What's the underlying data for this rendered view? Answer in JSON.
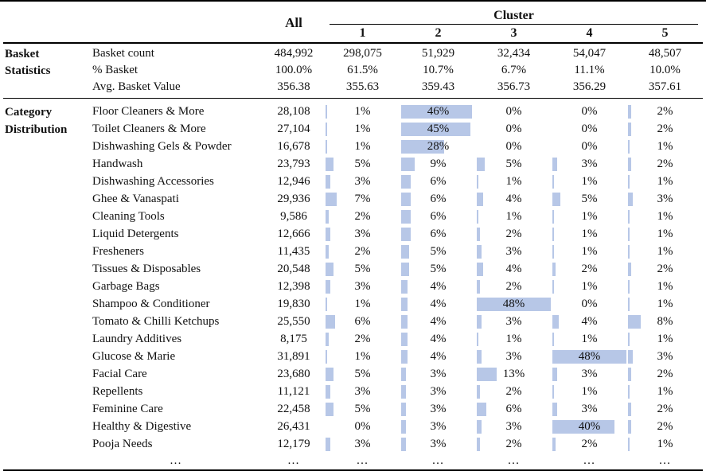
{
  "chart_data": {
    "type": "table",
    "header": {
      "all": "All",
      "cluster": "Cluster",
      "cluster_ids": [
        "1",
        "2",
        "3",
        "4",
        "5"
      ]
    },
    "basket_statistics": {
      "label": "Basket Statistics",
      "rows": [
        {
          "label": "Basket count",
          "all": "484,992",
          "clusters": [
            "298,075",
            "51,929",
            "32,434",
            "54,047",
            "48,507"
          ]
        },
        {
          "label": "% Basket",
          "all": "100.0%",
          "clusters": [
            "61.5%",
            "10.7%",
            "6.7%",
            "11.1%",
            "10.0%"
          ]
        },
        {
          "label": "Avg. Basket Value",
          "all": "356.38",
          "clusters": [
            "355.63",
            "359.43",
            "356.73",
            "356.29",
            "357.61"
          ]
        }
      ]
    },
    "category_distribution": {
      "label": "Category Distribution",
      "bar_color": "#b7c7e7",
      "bar_scale_max_pct": 48,
      "rows": [
        {
          "category": "Floor Cleaners & More",
          "all_count": "28,108",
          "cluster_pcts": [
            1,
            46,
            0,
            0,
            2
          ]
        },
        {
          "category": "Toilet Cleaners & More",
          "all_count": "27,104",
          "cluster_pcts": [
            1,
            45,
            0,
            0,
            2
          ]
        },
        {
          "category": "Dishwashing Gels & Powder",
          "all_count": "16,678",
          "cluster_pcts": [
            1,
            28,
            0,
            0,
            1
          ]
        },
        {
          "category": "Handwash",
          "all_count": "23,793",
          "cluster_pcts": [
            5,
            9,
            5,
            3,
            2
          ]
        },
        {
          "category": "Dishwashing Accessories",
          "all_count": "12,946",
          "cluster_pcts": [
            3,
            6,
            1,
            1,
            1
          ]
        },
        {
          "category": "Ghee & Vanaspati",
          "all_count": "29,936",
          "cluster_pcts": [
            7,
            6,
            4,
            5,
            3
          ]
        },
        {
          "category": "Cleaning Tools",
          "all_count": "9,586",
          "cluster_pcts": [
            2,
            6,
            1,
            1,
            1
          ]
        },
        {
          "category": "Liquid Detergents",
          "all_count": "12,666",
          "cluster_pcts": [
            3,
            6,
            2,
            1,
            1
          ]
        },
        {
          "category": "Fresheners",
          "all_count": "11,435",
          "cluster_pcts": [
            2,
            5,
            3,
            1,
            1
          ]
        },
        {
          "category": "Tissues & Disposables",
          "all_count": "20,548",
          "cluster_pcts": [
            5,
            5,
            4,
            2,
            2
          ]
        },
        {
          "category": "Garbage Bags",
          "all_count": "12,398",
          "cluster_pcts": [
            3,
            4,
            2,
            1,
            1
          ]
        },
        {
          "category": "Shampoo & Conditioner",
          "all_count": "19,830",
          "cluster_pcts": [
            1,
            4,
            48,
            0,
            1
          ]
        },
        {
          "category": "Tomato & Chilli Ketchups",
          "all_count": "25,550",
          "cluster_pcts": [
            6,
            4,
            3,
            4,
            8
          ]
        },
        {
          "category": "Laundry Additives",
          "all_count": "8,175",
          "cluster_pcts": [
            2,
            4,
            1,
            1,
            1
          ]
        },
        {
          "category": "Glucose & Marie",
          "all_count": "31,891",
          "cluster_pcts": [
            1,
            4,
            3,
            48,
            3
          ]
        },
        {
          "category": "Facial Care",
          "all_count": "23,680",
          "cluster_pcts": [
            5,
            3,
            13,
            3,
            2
          ]
        },
        {
          "category": "Repellents",
          "all_count": "11,121",
          "cluster_pcts": [
            3,
            3,
            2,
            1,
            1
          ]
        },
        {
          "category": "Feminine Care",
          "all_count": "22,458",
          "cluster_pcts": [
            5,
            3,
            6,
            3,
            2
          ]
        },
        {
          "category": "Healthy & Digestive",
          "all_count": "26,431",
          "cluster_pcts": [
            0,
            3,
            3,
            40,
            2
          ]
        },
        {
          "category": "Pooja Needs",
          "all_count": "12,179",
          "cluster_pcts": [
            3,
            3,
            2,
            2,
            1
          ]
        }
      ],
      "ellipsis": "…"
    }
  }
}
